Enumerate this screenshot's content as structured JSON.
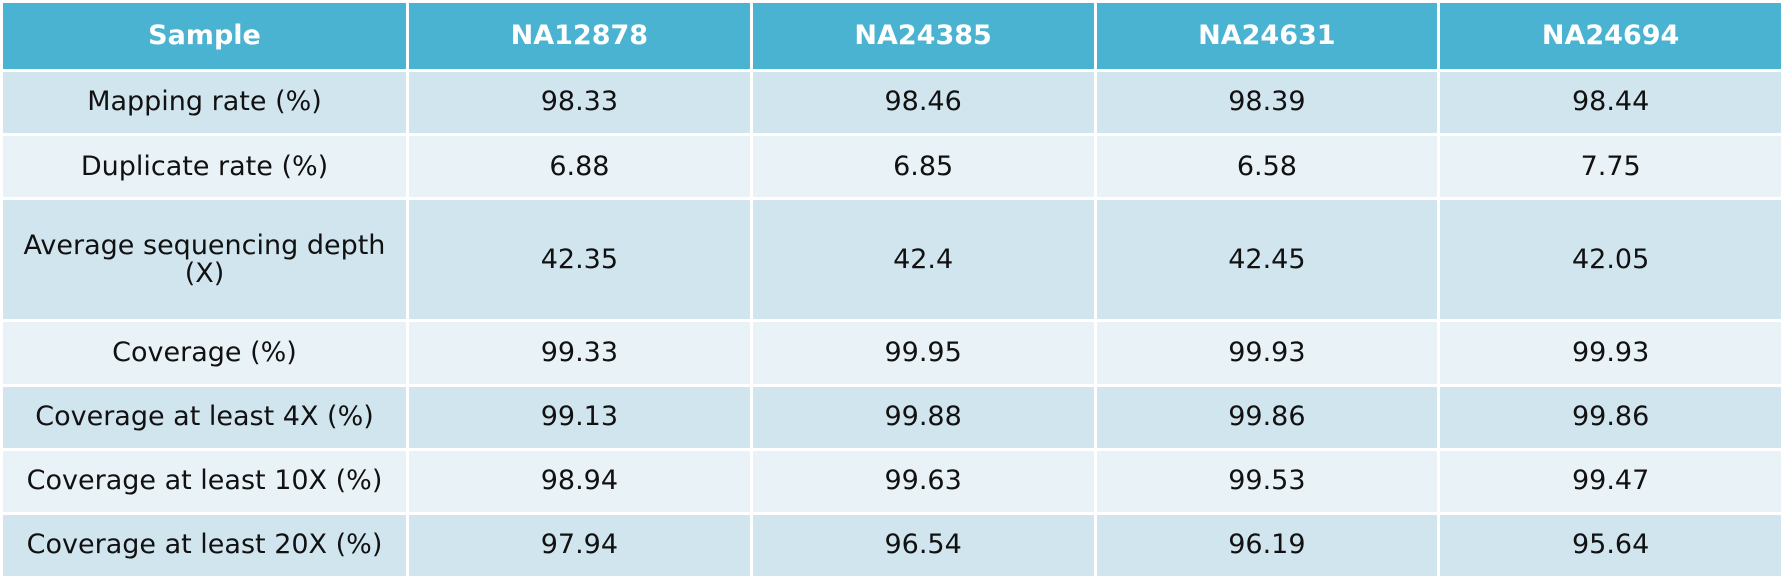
{
  "table": {
    "header": [
      "Sample",
      "NA12878",
      "NA24385",
      "NA24631",
      "NA24694"
    ],
    "rows": [
      [
        "Mapping rate (%)",
        98.33,
        98.46,
        98.39,
        98.44
      ],
      [
        "Duplicate rate (%)",
        6.88,
        6.85,
        6.58,
        7.75
      ],
      [
        "Average sequencing depth (X)",
        42.35,
        42.4,
        42.45,
        42.05
      ],
      [
        "Coverage (%)",
        99.33,
        99.95,
        99.93,
        99.93
      ],
      [
        "Coverage at least 4X (%)",
        99.13,
        99.88,
        99.86,
        99.86
      ],
      [
        "Coverage at least 10X (%)",
        98.94,
        99.63,
        99.53,
        99.47
      ],
      [
        "Coverage at least 20X (%)",
        97.94,
        96.54,
        96.19,
        95.64
      ]
    ]
  }
}
